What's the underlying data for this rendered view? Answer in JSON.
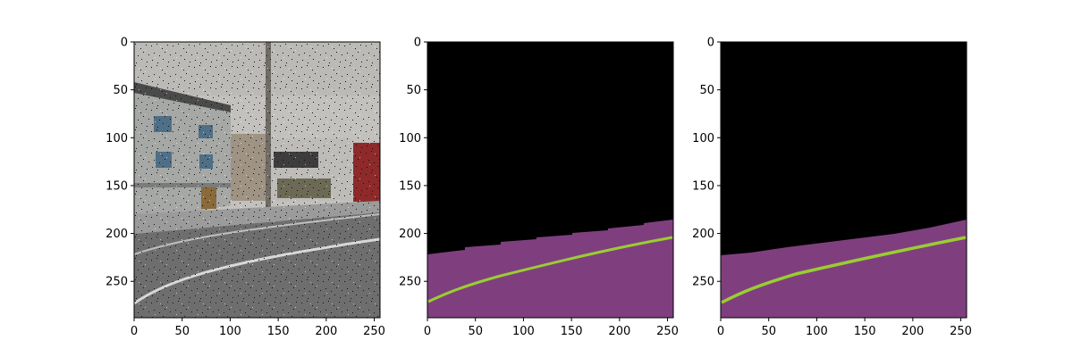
{
  "figure": {
    "panels": [
      {
        "name": "input-photo",
        "content": "street-scene-noisy",
        "x_ticks": [
          "0",
          "50",
          "100",
          "150",
          "200",
          "250"
        ],
        "y_ticks": [
          "0",
          "50",
          "100",
          "150",
          "200",
          "250"
        ]
      },
      {
        "name": "prediction-mask",
        "content": "segmentation",
        "x_ticks": [
          "0",
          "50",
          "100",
          "150",
          "200",
          "250"
        ],
        "y_ticks": [
          "0",
          "50",
          "100",
          "150",
          "200",
          "250"
        ]
      },
      {
        "name": "ground-truth-mask",
        "content": "segmentation",
        "x_ticks": [
          "0",
          "50",
          "100",
          "150",
          "200",
          "250"
        ],
        "y_ticks": [
          "0",
          "50",
          "100",
          "150",
          "200",
          "250"
        ]
      }
    ],
    "image_extent": {
      "x": [
        0,
        256
      ],
      "y": [
        0,
        288
      ]
    },
    "colors": {
      "background": "#000000",
      "road": "#7f3f7f",
      "lane_marking": "#9acd32",
      "sky": "#c8c6c2",
      "road_gray": "#6e6e6e",
      "building_white": "#c9c9c9",
      "building_red": "#8e2a2a"
    }
  }
}
